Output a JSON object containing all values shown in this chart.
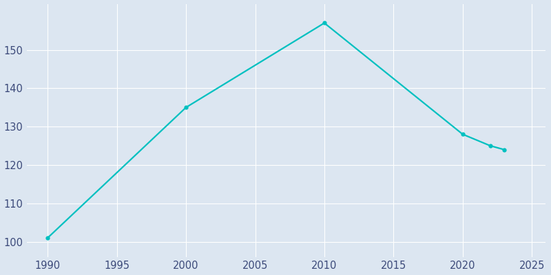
{
  "years": [
    1990,
    2000,
    2010,
    2020,
    2022,
    2023
  ],
  "population": [
    101,
    135,
    157,
    128,
    125,
    124
  ],
  "line_color": "#00c0c0",
  "marker": "o",
  "marker_size": 3.5,
  "line_width": 1.6,
  "figure_background_color": "#dce6f1",
  "plot_background_color": "#dce6f1",
  "grid_color": "#ffffff",
  "xlabel": "",
  "ylabel": "",
  "xlim": [
    1988.5,
    2026
  ],
  "ylim": [
    96,
    162
  ],
  "xticks": [
    1990,
    1995,
    2000,
    2005,
    2010,
    2015,
    2020,
    2025
  ],
  "yticks": [
    100,
    110,
    120,
    130,
    140,
    150
  ],
  "tick_label_color": "#3c4a7a",
  "tick_fontsize": 10.5,
  "grid_linewidth": 0.8
}
